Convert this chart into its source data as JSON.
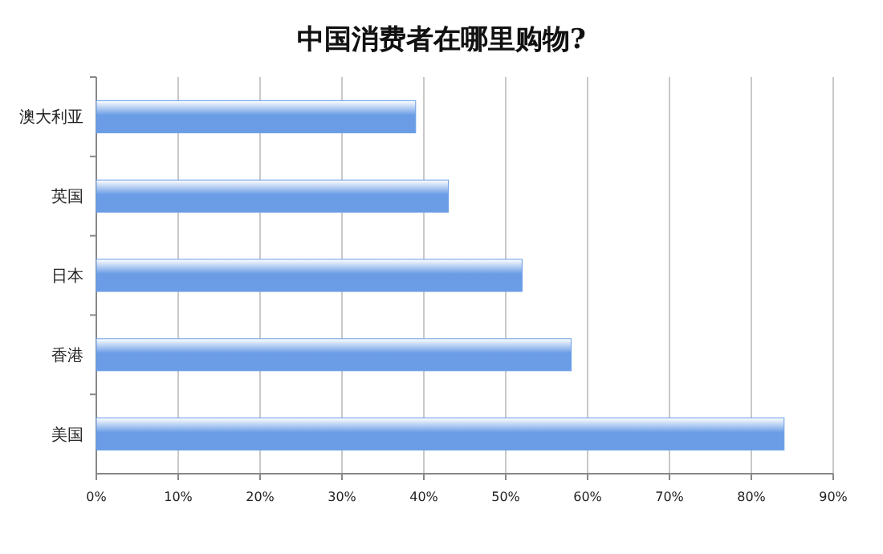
{
  "chart_data": {
    "type": "bar",
    "orientation": "horizontal",
    "title": "中国消费者在哪里购物?",
    "categories": [
      "澳大利亚",
      "英国",
      "日本",
      "香港",
      "美国"
    ],
    "values": [
      39,
      43,
      52,
      58,
      84
    ],
    "color": "#6a9de6",
    "xlim": [
      0,
      90
    ],
    "xticks": [
      {
        "value": 0,
        "label": "0%"
      },
      {
        "value": 10,
        "label": "10%"
      },
      {
        "value": 20,
        "label": "20%"
      },
      {
        "value": 30,
        "label": "30%"
      },
      {
        "value": 40,
        "label": "40%"
      },
      {
        "value": 50,
        "label": "50%"
      },
      {
        "value": 60,
        "label": "60%"
      },
      {
        "value": 70,
        "label": "70%"
      },
      {
        "value": 80,
        "label": "80%"
      },
      {
        "value": 90,
        "label": "90%"
      }
    ],
    "grid": "x"
  }
}
